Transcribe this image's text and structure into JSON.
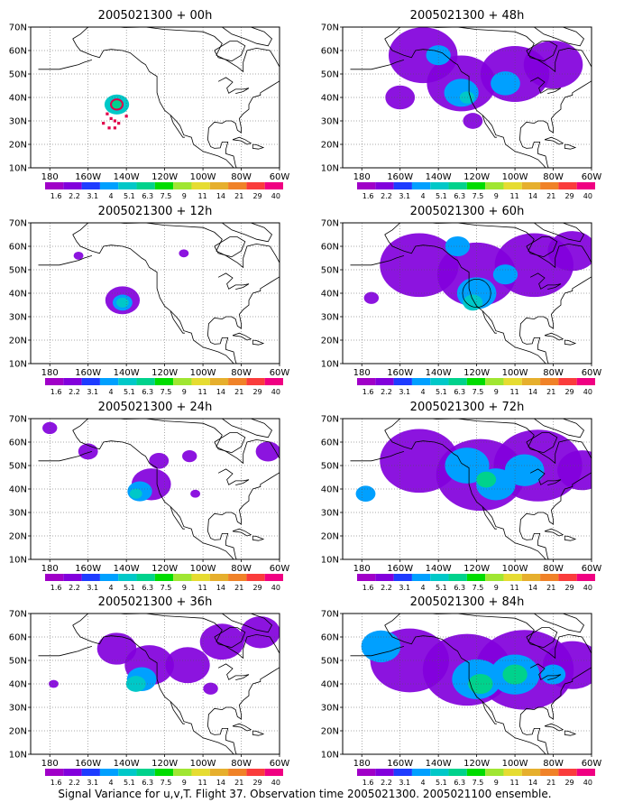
{
  "figure": {
    "caption": "Signal Variance for u,v,T. Flight 37. Observation time 2005021300. 2005021100 ensemble.",
    "colorbar": {
      "labels": [
        "1.6",
        "2.2",
        "3.1",
        "4",
        "5.1",
        "6.3",
        "7.5",
        "9",
        "11",
        "14",
        "21",
        "29",
        "40"
      ],
      "colors": [
        "#a000c8",
        "#8200dc",
        "#1e3cff",
        "#00a0ff",
        "#00c8c8",
        "#00d28c",
        "#00dc00",
        "#a0e632",
        "#e6dc32",
        "#e6af2d",
        "#f08228",
        "#fa3c3c",
        "#f00082"
      ]
    },
    "axes": {
      "x_ticks": [
        "180",
        "160W",
        "140W",
        "120W",
        "100W",
        "80W",
        "60W"
      ],
      "y_ticks": [
        "10N",
        "20N",
        "30N",
        "40N",
        "50N",
        "60N",
        "70N"
      ]
    }
  },
  "chart_data": [
    {
      "type": "heatmap",
      "title": "2005021300 + 00h",
      "xlim": [
        "170E",
        "60W"
      ],
      "ylim": [
        "10N",
        "70N"
      ],
      "blobs": [
        {
          "lon": -145,
          "lat": 37,
          "r": 5,
          "level": 4
        },
        {
          "lon": -145,
          "lat": 37,
          "r": 2.5,
          "level": 5
        }
      ],
      "observations": {
        "color": "#e0004a",
        "points": [
          [
            -150,
            33
          ],
          [
            -148,
            31
          ],
          [
            -146,
            30
          ],
          [
            -144,
            29
          ],
          [
            -152,
            29
          ],
          [
            -149,
            27
          ],
          [
            -146,
            27
          ],
          [
            -140,
            32
          ]
        ]
      }
    },
    {
      "type": "heatmap",
      "title": "2005021300 + 12h",
      "xlim": [
        "170E",
        "60W"
      ],
      "ylim": [
        "10N",
        "70N"
      ],
      "blobs": [
        {
          "lon": -142,
          "lat": 37,
          "r": 7,
          "level": 1
        },
        {
          "lon": -142,
          "lat": 36,
          "r": 4,
          "level": 3
        },
        {
          "lon": -142,
          "lat": 36,
          "r": 2.5,
          "level": 4
        },
        {
          "lon": -165,
          "lat": 56,
          "r": 2,
          "level": 1
        },
        {
          "lon": -110,
          "lat": 57,
          "r": 2,
          "level": 1
        }
      ]
    },
    {
      "type": "heatmap",
      "title": "2005021300 + 24h",
      "xlim": [
        "170E",
        "60W"
      ],
      "ylim": [
        "10N",
        "70N"
      ],
      "blobs": [
        {
          "lon": -127,
          "lat": 42,
          "r": 8,
          "level": 1
        },
        {
          "lon": -133,
          "lat": 39,
          "r": 5,
          "level": 3
        },
        {
          "lon": -135,
          "lat": 38,
          "r": 2.5,
          "level": 4
        },
        {
          "lon": -123,
          "lat": 52,
          "r": 4,
          "level": 1
        },
        {
          "lon": -107,
          "lat": 54,
          "r": 3,
          "level": 1
        },
        {
          "lon": -104,
          "lat": 38,
          "r": 2,
          "level": 1
        },
        {
          "lon": -66,
          "lat": 56,
          "r": 5,
          "level": 1
        },
        {
          "lon": -160,
          "lat": 56,
          "r": 4,
          "level": 1
        },
        {
          "lon": -180,
          "lat": 66,
          "r": 3,
          "level": 1
        }
      ]
    },
    {
      "type": "heatmap",
      "title": "2005021300 + 36h",
      "xlim": [
        "170E",
        "60W"
      ],
      "ylim": [
        "10N",
        "70N"
      ],
      "blobs": [
        {
          "lon": -145,
          "lat": 55,
          "r": 8,
          "level": 1
        },
        {
          "lon": -128,
          "lat": 48,
          "r": 10,
          "level": 1
        },
        {
          "lon": -108,
          "lat": 48,
          "r": 9,
          "level": 1
        },
        {
          "lon": -132,
          "lat": 42,
          "r": 6,
          "level": 3
        },
        {
          "lon": -135,
          "lat": 40,
          "r": 4,
          "level": 4
        },
        {
          "lon": -90,
          "lat": 58,
          "r": 9,
          "level": 1
        },
        {
          "lon": -70,
          "lat": 62,
          "r": 8,
          "level": 1
        },
        {
          "lon": -96,
          "lat": 38,
          "r": 3,
          "level": 1
        },
        {
          "lon": -178,
          "lat": 40,
          "r": 2,
          "level": 1
        }
      ]
    },
    {
      "type": "heatmap",
      "title": "2005021300 + 48h",
      "xlim": [
        "170E",
        "60W"
      ],
      "ylim": [
        "10N",
        "70N"
      ],
      "blobs": [
        {
          "lon": -148,
          "lat": 58,
          "r": 14,
          "level": 1
        },
        {
          "lon": -128,
          "lat": 46,
          "r": 14,
          "level": 1
        },
        {
          "lon": -100,
          "lat": 50,
          "r": 14,
          "level": 1
        },
        {
          "lon": -80,
          "lat": 54,
          "r": 12,
          "level": 1
        },
        {
          "lon": -160,
          "lat": 40,
          "r": 6,
          "level": 1
        },
        {
          "lon": -128,
          "lat": 42,
          "r": 7,
          "level": 3
        },
        {
          "lon": -140,
          "lat": 58,
          "r": 5,
          "level": 3
        },
        {
          "lon": -125,
          "lat": 40,
          "r": 3,
          "level": 4
        },
        {
          "lon": -105,
          "lat": 46,
          "r": 6,
          "level": 3
        },
        {
          "lon": -122,
          "lat": 30,
          "r": 4,
          "level": 1
        }
      ]
    },
    {
      "type": "heatmap",
      "title": "2005021300 + 60h",
      "xlim": [
        "170E",
        "60W"
      ],
      "ylim": [
        "10N",
        "70N"
      ],
      "blobs": [
        {
          "lon": -150,
          "lat": 52,
          "r": 16,
          "level": 1
        },
        {
          "lon": -120,
          "lat": 48,
          "r": 16,
          "level": 1
        },
        {
          "lon": -90,
          "lat": 52,
          "r": 16,
          "level": 1
        },
        {
          "lon": -70,
          "lat": 58,
          "r": 10,
          "level": 1
        },
        {
          "lon": -120,
          "lat": 40,
          "r": 8,
          "level": 3
        },
        {
          "lon": -122,
          "lat": 36,
          "r": 4,
          "level": 4
        },
        {
          "lon": -130,
          "lat": 60,
          "r": 5,
          "level": 3
        },
        {
          "lon": -105,
          "lat": 48,
          "r": 5,
          "level": 3
        },
        {
          "lon": -175,
          "lat": 38,
          "r": 3,
          "level": 1
        }
      ],
      "circle": {
        "lon": -120,
        "lat": 40,
        "r": 6
      }
    },
    {
      "type": "heatmap",
      "title": "2005021300 + 72h",
      "xlim": [
        "170E",
        "60W"
      ],
      "ylim": [
        "10N",
        "70N"
      ],
      "blobs": [
        {
          "lon": -150,
          "lat": 52,
          "r": 16,
          "level": 1
        },
        {
          "lon": -118,
          "lat": 46,
          "r": 18,
          "level": 1
        },
        {
          "lon": -88,
          "lat": 50,
          "r": 18,
          "level": 1
        },
        {
          "lon": -65,
          "lat": 48,
          "r": 10,
          "level": 1
        },
        {
          "lon": -125,
          "lat": 50,
          "r": 9,
          "level": 3
        },
        {
          "lon": -110,
          "lat": 42,
          "r": 8,
          "level": 3
        },
        {
          "lon": -95,
          "lat": 48,
          "r": 8,
          "level": 3
        },
        {
          "lon": -115,
          "lat": 44,
          "r": 4,
          "level": 5
        },
        {
          "lon": -178,
          "lat": 38,
          "r": 4,
          "level": 3
        }
      ]
    },
    {
      "type": "heatmap",
      "title": "2005021300 + 84h",
      "xlim": [
        "170E",
        "60W"
      ],
      "ylim": [
        "10N",
        "70N"
      ],
      "blobs": [
        {
          "lon": -155,
          "lat": 50,
          "r": 16,
          "level": 1
        },
        {
          "lon": -125,
          "lat": 46,
          "r": 18,
          "level": 1
        },
        {
          "lon": -95,
          "lat": 46,
          "r": 20,
          "level": 1
        },
        {
          "lon": -70,
          "lat": 48,
          "r": 12,
          "level": 1
        },
        {
          "lon": -120,
          "lat": 42,
          "r": 10,
          "level": 3
        },
        {
          "lon": -100,
          "lat": 44,
          "r": 10,
          "level": 3
        },
        {
          "lon": -170,
          "lat": 56,
          "r": 8,
          "level": 3
        },
        {
          "lon": -118,
          "lat": 40,
          "r": 5,
          "level": 5
        },
        {
          "lon": -100,
          "lat": 44,
          "r": 5,
          "level": 5
        },
        {
          "lon": -80,
          "lat": 44,
          "r": 5,
          "level": 3
        }
      ]
    }
  ]
}
